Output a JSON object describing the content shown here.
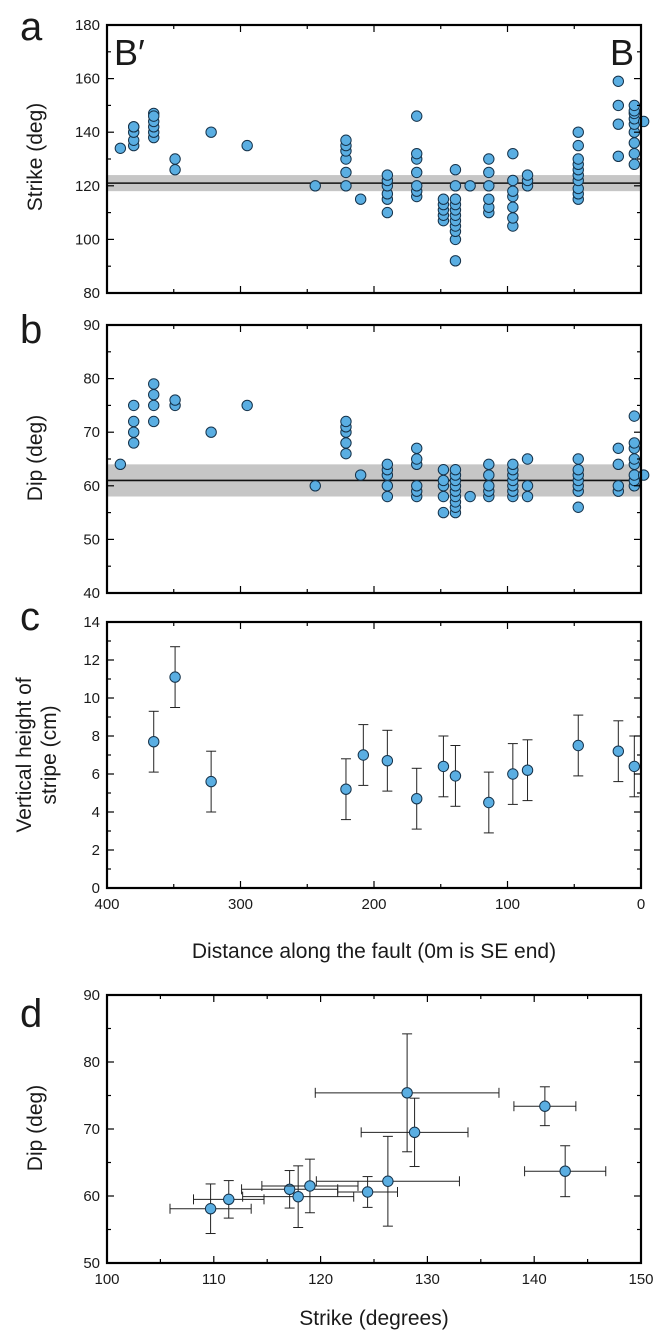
{
  "chart_data": [
    {
      "id": "a",
      "type": "scatter",
      "panel_letter": "a",
      "ylabel": "Strike (deg)",
      "xlabel": "",
      "xlim": [
        400,
        0
      ],
      "ylim": [
        80,
        180
      ],
      "yticks": [
        "80",
        "100",
        "120",
        "140",
        "160",
        "180"
      ],
      "corner_left": "B′",
      "corner_right": "B",
      "reference": {
        "value": 121,
        "band": [
          118,
          124
        ]
      },
      "points": [
        [
          390,
          134
        ],
        [
          380,
          135
        ],
        [
          380,
          137
        ],
        [
          380,
          140
        ],
        [
          380,
          142
        ],
        [
          380,
          142
        ],
        [
          365,
          138
        ],
        [
          365,
          140
        ],
        [
          365,
          142
        ],
        [
          365,
          144
        ],
        [
          365,
          147
        ],
        [
          365,
          146
        ],
        [
          349,
          126
        ],
        [
          349,
          130
        ],
        [
          322,
          140
        ],
        [
          295,
          135
        ],
        [
          244,
          120
        ],
        [
          221,
          120
        ],
        [
          221,
          125
        ],
        [
          221,
          130
        ],
        [
          221,
          133
        ],
        [
          221,
          135
        ],
        [
          221,
          137
        ],
        [
          210,
          115
        ],
        [
          190,
          110
        ],
        [
          190,
          115
        ],
        [
          190,
          117
        ],
        [
          190,
          120
        ],
        [
          190,
          122
        ],
        [
          190,
          124
        ],
        [
          168,
          116
        ],
        [
          168,
          118
        ],
        [
          168,
          120
        ],
        [
          168,
          125
        ],
        [
          168,
          130
        ],
        [
          168,
          132
        ],
        [
          168,
          146
        ],
        [
          148,
          107
        ],
        [
          148,
          109
        ],
        [
          148,
          111
        ],
        [
          148,
          113
        ],
        [
          148,
          115
        ],
        [
          139,
          92
        ],
        [
          139,
          100
        ],
        [
          139,
          103
        ],
        [
          139,
          105
        ],
        [
          139,
          107
        ],
        [
          139,
          109
        ],
        [
          139,
          111
        ],
        [
          139,
          113
        ],
        [
          139,
          115
        ],
        [
          139,
          120
        ],
        [
          139,
          126
        ],
        [
          128,
          120
        ],
        [
          114,
          110
        ],
        [
          114,
          112
        ],
        [
          114,
          115
        ],
        [
          114,
          120
        ],
        [
          114,
          125
        ],
        [
          114,
          130
        ],
        [
          96,
          105
        ],
        [
          96,
          108
        ],
        [
          96,
          112
        ],
        [
          96,
          116
        ],
        [
          96,
          118
        ],
        [
          96,
          122
        ],
        [
          96,
          132
        ],
        [
          85,
          120
        ],
        [
          85,
          122
        ],
        [
          85,
          124
        ],
        [
          47,
          115
        ],
        [
          47,
          117
        ],
        [
          47,
          119
        ],
        [
          47,
          122
        ],
        [
          47,
          124
        ],
        [
          47,
          126
        ],
        [
          47,
          128
        ],
        [
          47,
          130
        ],
        [
          47,
          135
        ],
        [
          47,
          140
        ],
        [
          17,
          131
        ],
        [
          17,
          143
        ],
        [
          17,
          150
        ],
        [
          17,
          159
        ],
        [
          5,
          128
        ],
        [
          5,
          132
        ],
        [
          5,
          136
        ],
        [
          5,
          140
        ],
        [
          5,
          143
        ],
        [
          5,
          145
        ],
        [
          5,
          147
        ],
        [
          5,
          148
        ],
        [
          5,
          150
        ],
        [
          -2,
          144
        ]
      ]
    },
    {
      "id": "b",
      "type": "scatter",
      "panel_letter": "b",
      "ylabel": "Dip (deg)",
      "xlabel": "",
      "xlim": [
        400,
        0
      ],
      "ylim": [
        40,
        90
      ],
      "yticks": [
        "40",
        "50",
        "60",
        "70",
        "80",
        "90"
      ],
      "reference": {
        "value": 61,
        "band": [
          58,
          64
        ]
      },
      "points": [
        [
          390,
          64
        ],
        [
          380,
          68
        ],
        [
          380,
          70
        ],
        [
          380,
          72
        ],
        [
          380,
          75
        ],
        [
          365,
          72
        ],
        [
          365,
          75
        ],
        [
          365,
          77
        ],
        [
          365,
          79
        ],
        [
          349,
          75
        ],
        [
          349,
          76
        ],
        [
          322,
          70
        ],
        [
          295,
          75
        ],
        [
          244,
          60
        ],
        [
          221,
          66
        ],
        [
          221,
          68
        ],
        [
          221,
          70
        ],
        [
          221,
          71
        ],
        [
          221,
          72
        ],
        [
          210,
          62
        ],
        [
          190,
          58
        ],
        [
          190,
          60
        ],
        [
          190,
          62
        ],
        [
          190,
          63
        ],
        [
          190,
          64
        ],
        [
          168,
          58
        ],
        [
          168,
          59
        ],
        [
          168,
          60
        ],
        [
          168,
          64
        ],
        [
          168,
          65
        ],
        [
          168,
          67
        ],
        [
          148,
          55
        ],
        [
          148,
          58
        ],
        [
          148,
          60
        ],
        [
          148,
          61
        ],
        [
          148,
          63
        ],
        [
          139,
          55
        ],
        [
          139,
          56
        ],
        [
          139,
          57
        ],
        [
          139,
          58
        ],
        [
          139,
          59
        ],
        [
          139,
          60
        ],
        [
          139,
          61
        ],
        [
          139,
          62
        ],
        [
          139,
          63
        ],
        [
          128,
          58
        ],
        [
          114,
          58
        ],
        [
          114,
          59
        ],
        [
          114,
          60
        ],
        [
          114,
          62
        ],
        [
          114,
          64
        ],
        [
          96,
          58
        ],
        [
          96,
          59
        ],
        [
          96,
          60
        ],
        [
          96,
          61
        ],
        [
          96,
          62
        ],
        [
          96,
          63
        ],
        [
          96,
          64
        ],
        [
          85,
          58
        ],
        [
          85,
          60
        ],
        [
          85,
          65
        ],
        [
          47,
          56
        ],
        [
          47,
          59
        ],
        [
          47,
          60
        ],
        [
          47,
          61
        ],
        [
          47,
          62
        ],
        [
          47,
          63
        ],
        [
          47,
          65
        ],
        [
          17,
          59
        ],
        [
          17,
          60
        ],
        [
          17,
          64
        ],
        [
          17,
          67
        ],
        [
          5,
          60
        ],
        [
          5,
          61
        ],
        [
          5,
          62
        ],
        [
          5,
          64
        ],
        [
          5,
          65
        ],
        [
          5,
          67
        ],
        [
          5,
          68
        ],
        [
          5,
          73
        ],
        [
          -2,
          62
        ]
      ]
    },
    {
      "id": "c",
      "type": "scatter",
      "panel_letter": "c",
      "ylabel": "Vertical height of stripe (cm)",
      "ylabel_lines": [
        "Vertical height of",
        "stripe (cm)"
      ],
      "xlabel": "Distance along the fault (0m is SE end)",
      "xlim": [
        400,
        0
      ],
      "ylim": [
        0,
        14
      ],
      "xticks": [
        "400",
        "300",
        "200",
        "100",
        "0"
      ],
      "yticks": [
        "0",
        "2",
        "4",
        "6",
        "8",
        "10",
        "12",
        "14"
      ],
      "points": [
        {
          "x": 365,
          "y": 7.7,
          "err": 1.6
        },
        {
          "x": 349,
          "y": 11.1,
          "err": 1.6
        },
        {
          "x": 322,
          "y": 5.6,
          "err": 1.6
        },
        {
          "x": 221,
          "y": 5.2,
          "err": 1.6
        },
        {
          "x": 208,
          "y": 7.0,
          "err": 1.6
        },
        {
          "x": 190,
          "y": 6.7,
          "err": 1.6
        },
        {
          "x": 168,
          "y": 4.7,
          "err": 1.6
        },
        {
          "x": 148,
          "y": 6.4,
          "err": 1.6
        },
        {
          "x": 139,
          "y": 5.9,
          "err": 1.6
        },
        {
          "x": 114,
          "y": 4.5,
          "err": 1.6
        },
        {
          "x": 96,
          "y": 6.0,
          "err": 1.6
        },
        {
          "x": 85,
          "y": 6.2,
          "err": 1.6
        },
        {
          "x": 47,
          "y": 7.5,
          "err": 1.6
        },
        {
          "x": 17,
          "y": 7.2,
          "err": 1.6
        },
        {
          "x": 5,
          "y": 6.4,
          "err": 1.6
        }
      ]
    },
    {
      "id": "d",
      "type": "scatter",
      "panel_letter": "d",
      "ylabel": "Dip (deg)",
      "xlabel": "Strike (degrees)",
      "xlim": [
        100,
        150
      ],
      "ylim": [
        50,
        90
      ],
      "xticks": [
        "100",
        "110",
        "120",
        "130",
        "140",
        "150"
      ],
      "yticks": [
        "50",
        "60",
        "70",
        "80",
        "90"
      ],
      "points": [
        {
          "x": 109.7,
          "y": 58.1,
          "xerr": 3.8,
          "yerr": 3.7
        },
        {
          "x": 111.4,
          "y": 59.5,
          "xerr": 3.3,
          "yerr": 2.8
        },
        {
          "x": 117.1,
          "y": 61.0,
          "xerr": 4.5,
          "yerr": 2.8
        },
        {
          "x": 117.9,
          "y": 59.9,
          "xerr": 5.2,
          "yerr": 4.6
        },
        {
          "x": 119.0,
          "y": 61.5,
          "xerr": 4.5,
          "yerr": 4.0
        },
        {
          "x": 124.4,
          "y": 60.6,
          "xerr": 2.8,
          "yerr": 2.3
        },
        {
          "x": 126.3,
          "y": 62.2,
          "xerr": 6.7,
          "yerr": 6.7
        },
        {
          "x": 128.1,
          "y": 75.4,
          "xerr": 8.6,
          "yerr": 8.8
        },
        {
          "x": 128.8,
          "y": 69.5,
          "xerr": 5.0,
          "yerr": 5.1
        },
        {
          "x": 141.0,
          "y": 73.4,
          "xerr": 2.9,
          "yerr": 2.9
        },
        {
          "x": 142.9,
          "y": 63.7,
          "xerr": 3.8,
          "yerr": 3.8
        }
      ]
    }
  ]
}
